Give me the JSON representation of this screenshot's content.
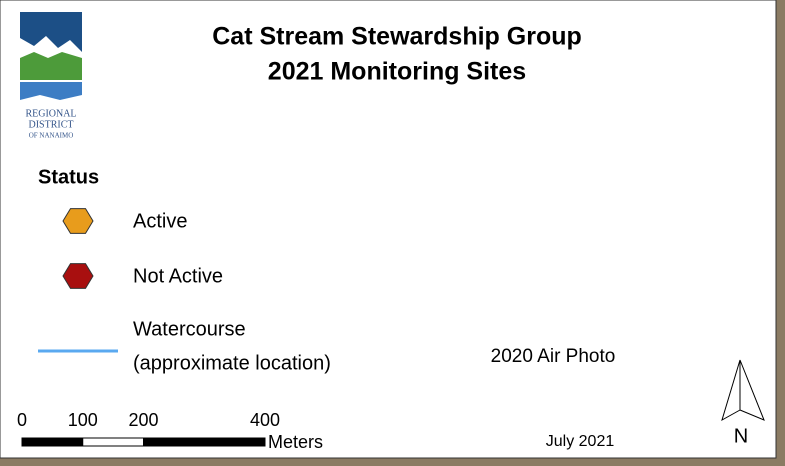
{
  "logo": {
    "lines": [
      "REGIONAL",
      "DISTRICT",
      "OF NANAIMO"
    ]
  },
  "title": [
    "Cat Stream Stewardship Group",
    "2021 Monitoring Sites"
  ],
  "legend": {
    "title": "Status",
    "sites": [
      {
        "label": "Active",
        "color": "#e89c1c"
      },
      {
        "label": "Not Active",
        "color": "#a80f0f"
      }
    ],
    "watercourse": {
      "lines": [
        "Watercourse",
        "(approximate location)"
      ],
      "color": "#5aa9f0"
    }
  },
  "source": "2020 Air Photo",
  "scale": {
    "ticks": [
      0,
      100,
      200,
      400
    ],
    "unit": "Meters"
  },
  "date": "July 2021",
  "north": "N"
}
